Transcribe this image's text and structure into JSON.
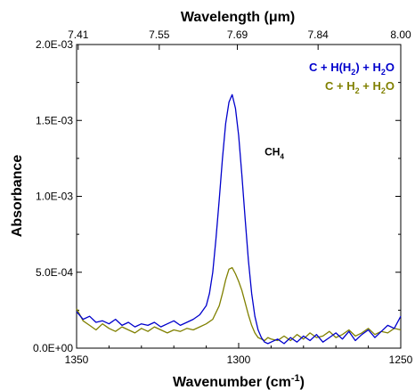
{
  "chart_data": {
    "type": "line",
    "title": "",
    "xlabel": "Wavenumber (cm",
    "xlabel_superscript": "-1",
    "xlabel_suffix": ")",
    "ylabel": "Absorbance",
    "top_xlabel": "Wavelength (μm)",
    "xlim": [
      1350,
      1250
    ],
    "x_reversed": true,
    "ylim": [
      0,
      0.002
    ],
    "x_ticks": [
      {
        "value": 1350,
        "label": "1350"
      },
      {
        "value": 1300,
        "label": "1300"
      },
      {
        "value": 1250,
        "label": "1250"
      }
    ],
    "y_ticks": [
      {
        "value": 0,
        "label": "0.0E+00"
      },
      {
        "value": 0.0005,
        "label": "5.0E-04"
      },
      {
        "value": 0.001,
        "label": "1.0E-03"
      },
      {
        "value": 0.0015,
        "label": "1.5E-03"
      },
      {
        "value": 0.002,
        "label": "2.0E-03"
      }
    ],
    "top_ticks": [
      {
        "value": 1349.5,
        "label": "7.41"
      },
      {
        "value": 1324.5,
        "label": "7.55"
      },
      {
        "value": 1300.4,
        "label": "7.69"
      },
      {
        "value": 1275.5,
        "label": "7.84"
      },
      {
        "value": 1250.0,
        "label": "8.00"
      }
    ],
    "legend_placement": "top-right",
    "annotation": {
      "text": "CH",
      "subscript": "4",
      "x": 1292,
      "y": 0.00127
    },
    "series": [
      {
        "name": "C + H(H2) + H2O",
        "color": "#0000cc",
        "x": [
          1350,
          1348,
          1346,
          1344,
          1342,
          1340,
          1338,
          1336,
          1334,
          1332,
          1330,
          1328,
          1326,
          1324,
          1322,
          1320,
          1318,
          1316,
          1314,
          1312,
          1310,
          1309,
          1308,
          1307,
          1306,
          1305,
          1304,
          1303,
          1302,
          1301,
          1300,
          1299,
          1298,
          1297,
          1296,
          1295,
          1294,
          1293,
          1292,
          1291,
          1290,
          1288,
          1286,
          1284,
          1282,
          1280,
          1278,
          1276,
          1274,
          1272,
          1270,
          1268,
          1266,
          1264,
          1262,
          1260,
          1258,
          1256,
          1254,
          1252,
          1250
        ],
        "y": [
          0.00024,
          0.00019,
          0.00021,
          0.00017,
          0.00018,
          0.00016,
          0.00019,
          0.00015,
          0.00017,
          0.00014,
          0.00016,
          0.00015,
          0.00017,
          0.00014,
          0.00016,
          0.00018,
          0.00015,
          0.00017,
          0.00019,
          0.00022,
          0.00028,
          0.00036,
          0.0005,
          0.00072,
          0.00098,
          0.00125,
          0.00148,
          0.00162,
          0.00167,
          0.00158,
          0.0014,
          0.00114,
          0.00085,
          0.00058,
          0.00036,
          0.00021,
          0.00012,
          7e-05,
          4e-05,
          3e-05,
          4e-05,
          6e-05,
          3e-05,
          7e-05,
          4e-05,
          8e-05,
          5e-05,
          9e-05,
          4e-05,
          7e-05,
          0.0001,
          6e-05,
          0.00011,
          5e-05,
          9e-05,
          0.00012,
          7e-05,
          0.00011,
          0.00015,
          0.00013,
          0.00021
        ]
      },
      {
        "name": "C + H2 + H2O",
        "color": "#808000",
        "x": [
          1350,
          1348,
          1346,
          1344,
          1342,
          1340,
          1338,
          1336,
          1334,
          1332,
          1330,
          1328,
          1326,
          1324,
          1322,
          1320,
          1318,
          1316,
          1314,
          1312,
          1310,
          1308,
          1306,
          1305,
          1304,
          1303,
          1302,
          1301,
          1300,
          1299,
          1298,
          1297,
          1296,
          1295,
          1294,
          1293,
          1292,
          1291,
          1290,
          1288,
          1286,
          1284,
          1282,
          1280,
          1278,
          1276,
          1274,
          1272,
          1270,
          1268,
          1266,
          1264,
          1262,
          1260,
          1258,
          1256,
          1254,
          1252,
          1250
        ],
        "y": [
          0.00026,
          0.00018,
          0.00015,
          0.00012,
          0.00016,
          0.00013,
          0.00011,
          0.00014,
          0.00012,
          0.0001,
          0.00013,
          0.00011,
          0.00014,
          0.00012,
          0.0001,
          0.00012,
          0.00011,
          0.00013,
          0.00012,
          0.00014,
          0.00016,
          0.00019,
          0.00028,
          0.00036,
          0.00045,
          0.00052,
          0.00053,
          0.00049,
          0.00044,
          0.00038,
          0.0003,
          0.00022,
          0.00015,
          0.0001,
          7e-05,
          6e-05,
          5e-05,
          7e-05,
          6e-05,
          5e-05,
          8e-05,
          5e-05,
          9e-05,
          6e-05,
          0.0001,
          7e-05,
          8e-05,
          0.00011,
          7e-05,
          9e-05,
          0.00012,
          8e-05,
          0.0001,
          0.00013,
          9e-05,
          0.00011,
          0.0001,
          0.00013,
          0.00012
        ]
      }
    ],
    "legend": [
      {
        "prefix": "C + H(H",
        "sub1": "2",
        "mid": ") + H",
        "sub2": "2",
        "suffix": "O",
        "color": "#0000cc"
      },
      {
        "prefix": "C + H",
        "sub1": "2",
        "mid": " + H",
        "sub2": "2",
        "suffix": "O",
        "color": "#808000"
      }
    ]
  }
}
